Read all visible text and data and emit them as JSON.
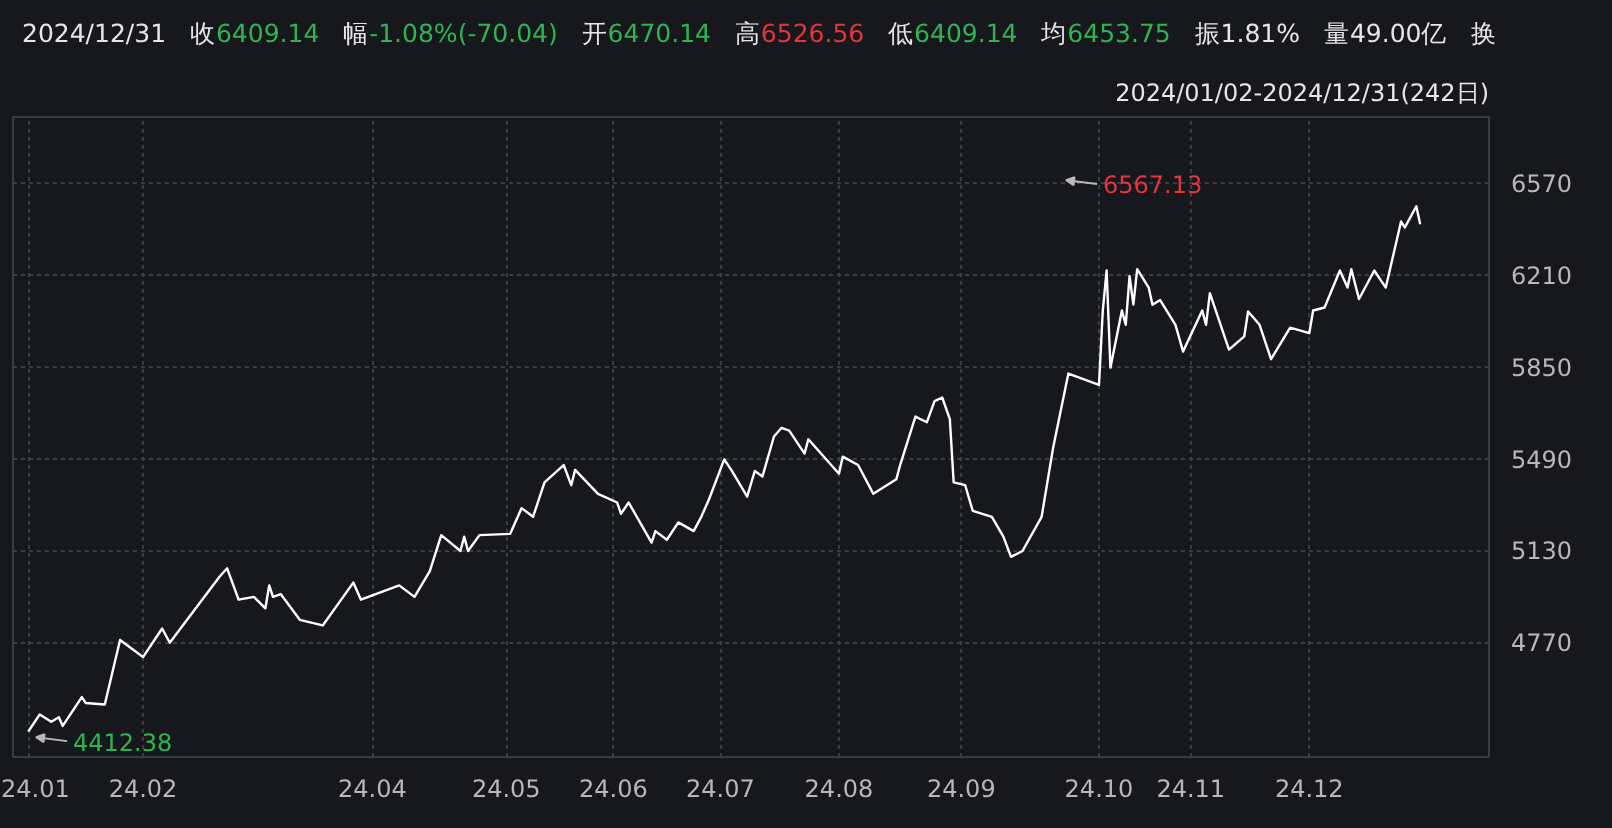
{
  "chart_data": {
    "type": "line",
    "title": "2024/12/31",
    "subtitle": "2024/01/02-2024/12/31(242日)",
    "annotations": [
      "收6409.14",
      "幅-1.08%(-70.04)",
      "开6470.14",
      "高6526.56",
      "低6409.14",
      "均6453.75",
      "振1.81%",
      "量49.00亿",
      "换",
      "6567.13",
      "4412.38"
    ],
    "x": [
      "2024-01-02",
      "2024-01-05",
      "2024-01-08",
      "2024-01-10",
      "2024-01-11",
      "2024-01-16",
      "2024-01-17",
      "2024-01-22",
      "2024-01-26",
      "2024-02-01",
      "2024-02-06",
      "2024-02-08",
      "2024-02-21",
      "2024-02-23",
      "2024-02-26",
      "2024-03-01",
      "2024-03-04",
      "2024-03-05",
      "2024-03-06",
      "2024-03-08",
      "2024-03-13",
      "2024-03-19",
      "2024-03-27",
      "2024-03-29",
      "2024-04-08",
      "2024-04-12",
      "2024-04-16",
      "2024-04-19",
      "2024-04-24",
      "2024-04-25",
      "2024-04-26",
      "2024-04-29",
      "2024-05-07",
      "2024-05-10",
      "2024-05-13",
      "2024-05-16",
      "2024-05-21",
      "2024-05-23",
      "2024-05-24",
      "2024-05-30",
      "2024-06-04",
      "2024-06-05",
      "2024-06-07",
      "2024-06-13",
      "2024-06-14",
      "2024-06-17",
      "2024-06-20",
      "2024-06-24",
      "2024-06-26",
      "2024-06-28",
      "2024-07-02",
      "2024-07-04",
      "2024-07-08",
      "2024-07-10",
      "2024-07-12",
      "2024-07-15",
      "2024-07-17",
      "2024-07-19",
      "2024-07-23",
      "2024-07-24",
      "2024-08-01",
      "2024-08-02",
      "2024-08-06",
      "2024-08-10",
      "2024-08-16",
      "2024-08-17",
      "2024-08-21",
      "2024-08-24",
      "2024-08-26",
      "2024-08-28",
      "2024-08-30",
      "2024-08-31",
      "2024-09-03",
      "2024-09-05",
      "2024-09-10",
      "2024-09-13",
      "2024-09-15",
      "2024-09-18",
      "2024-09-23",
      "2024-09-26",
      "2024-09-30",
      "2024-10-08",
      "2024-10-09",
      "2024-10-10",
      "2024-10-11",
      "2024-10-14",
      "2024-10-15",
      "2024-10-16",
      "2024-10-17",
      "2024-10-18",
      "2024-10-21",
      "2024-10-22",
      "2024-10-24",
      "2024-10-28",
      "2024-10-30",
      "2024-11-04",
      "2024-11-05",
      "2024-11-06",
      "2024-11-11",
      "2024-11-15",
      "2024-11-16",
      "2024-11-19",
      "2024-11-22",
      "2024-11-27",
      "2024-12-02",
      "2024-12-03",
      "2024-12-06",
      "2024-12-10",
      "2024-12-12",
      "2024-12-13",
      "2024-12-15",
      "2024-12-19",
      "2024-12-22",
      "2024-12-26",
      "2024-12-27",
      "2024-12-30",
      "2024-12-31"
    ],
    "series": [
      {
        "color": "#ffffff",
        "values": [
          4420,
          4487,
          4458,
          4476,
          4442,
          4555,
          4532,
          4526,
          4779,
          4712,
          4824,
          4768,
          5027,
          5060,
          4937,
          4948,
          4903,
          4993,
          4948,
          4959,
          4858,
          4836,
          5004,
          4937,
          4993,
          4948,
          5049,
          5190,
          5128,
          5184,
          5128,
          5190,
          5195,
          5296,
          5262,
          5397,
          5465,
          5386,
          5446,
          5352,
          5318,
          5274,
          5318,
          5161,
          5206,
          5172,
          5240,
          5206,
          5262,
          5330,
          5487,
          5442,
          5341,
          5442,
          5420,
          5577,
          5611,
          5600,
          5510,
          5566,
          5431,
          5498,
          5465,
          5352,
          5409,
          5465,
          5655,
          5633,
          5716,
          5730,
          5645,
          5397,
          5386,
          5285,
          5262,
          5184,
          5105,
          5128,
          5262,
          5532,
          5824,
          5779,
          6071,
          6228,
          5847,
          6071,
          6015,
          6206,
          6094,
          6233,
          6161,
          6094,
          6112,
          6015,
          5910,
          6071,
          6015,
          6139,
          5918,
          5970,
          6067,
          6015,
          5880,
          6004,
          5982,
          6071,
          6083,
          6228,
          6161,
          6233,
          6116,
          6228,
          6161,
          6420,
          6397,
          6480,
          6409
        ]
      }
    ],
    "xlim": [
      "2023-12-29",
      "2025-01-18"
    ],
    "ylim": [
      4320,
      6830
    ],
    "xticks": [
      {
        "value": "2024-01-02",
        "label": "24.01"
      },
      {
        "value": "2024-02-01",
        "label": "24.02"
      },
      {
        "value": "2024-04-01",
        "label": "24.04"
      },
      {
        "value": "2024-05-06",
        "label": "24.05"
      },
      {
        "value": "2024-06-03",
        "label": "24.06"
      },
      {
        "value": "2024-07-01",
        "label": "24.07"
      },
      {
        "value": "2024-08-01",
        "label": "24.08"
      },
      {
        "value": "2024-09-02",
        "label": "24.09"
      },
      {
        "value": "2024-10-08",
        "label": "24.10"
      },
      {
        "value": "2024-11-01",
        "label": "24.11"
      },
      {
        "value": "2024-12-02",
        "label": "24.12"
      }
    ],
    "yticks": [
      4770,
      5130,
      5490,
      5850,
      6210,
      6570
    ],
    "grid": true,
    "line_style": "solid",
    "marker": "none"
  }
}
